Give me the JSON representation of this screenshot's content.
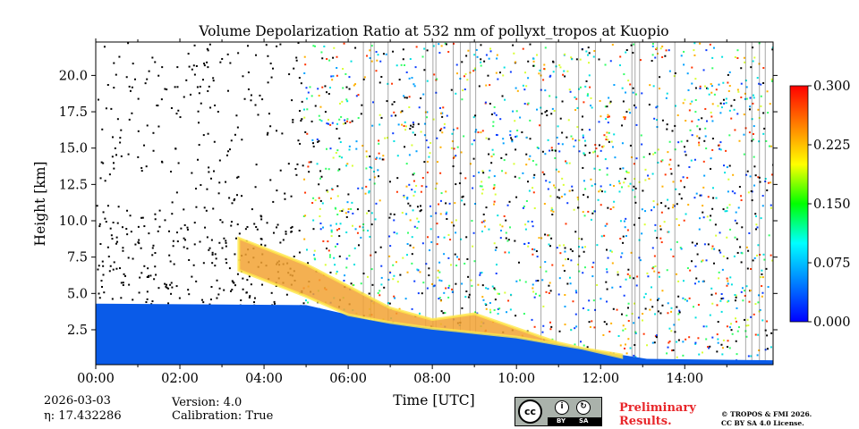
{
  "chart_data": {
    "type": "heatmap",
    "title": "Volume Depolarization Ratio at 532 nm of pollyxt_tropos at Kuopio",
    "xlabel": "Time [UTC]",
    "ylabel": "Height [km]",
    "x_ticks": [
      "00:00",
      "02:00",
      "04:00",
      "06:00",
      "08:00",
      "10:00",
      "12:00",
      "14:00"
    ],
    "x_tick_values_h": [
      0,
      2,
      4,
      6,
      8,
      10,
      12,
      14
    ],
    "xlim_h": [
      0,
      16.1
    ],
    "y_ticks": [
      "2.5",
      "5.0",
      "7.5",
      "10.0",
      "12.5",
      "15.0",
      "17.5",
      "20.0"
    ],
    "y_tick_values_km": [
      2.5,
      5.0,
      7.5,
      10.0,
      12.5,
      15.0,
      17.5,
      20.0
    ],
    "ylim_km": [
      0.1,
      22.3
    ],
    "colorbar": {
      "ticks": [
        "0.000",
        "0.075",
        "0.150",
        "0.225",
        "0.300"
      ],
      "tick_values": [
        0,
        0.075,
        0.15,
        0.225,
        0.3
      ],
      "range": [
        0,
        0.3
      ],
      "colors": [
        "#0000ff",
        "#0080ff",
        "#00ffff",
        "#00ff00",
        "#ffff00",
        "#ff8000",
        "#ff0000"
      ]
    },
    "layers": {
      "boundary_layer_top_km": [
        [
          0,
          4.3
        ],
        [
          5,
          4.2
        ],
        [
          6.5,
          3.2
        ],
        [
          8,
          2.6
        ],
        [
          10,
          2.0
        ],
        [
          12,
          1.0
        ],
        [
          13.1,
          0.5
        ],
        [
          16.1,
          0.4
        ]
      ],
      "aerosol_plume_top_km": [
        [
          3.4,
          8.8
        ],
        [
          5,
          7.0
        ],
        [
          6,
          5.5
        ],
        [
          7,
          4.0
        ],
        [
          8,
          3.2
        ],
        [
          9,
          3.6
        ],
        [
          10,
          2.6
        ],
        [
          11,
          1.6
        ],
        [
          12.5,
          0.6
        ]
      ]
    }
  },
  "footer": {
    "date": "2026-03-03",
    "eta": "η: 17.432286",
    "version": "Version: 4.0",
    "calibration": "Calibration: True",
    "license_badge": {
      "cc": "cc",
      "by": "BY",
      "sa": "SA"
    },
    "preliminary_line1": "Preliminary",
    "preliminary_line2": "Results.",
    "copyright_line1": "© TROPOS & FMI 2026.",
    "copyright_line2": "CC BY SA 4.0 License."
  }
}
